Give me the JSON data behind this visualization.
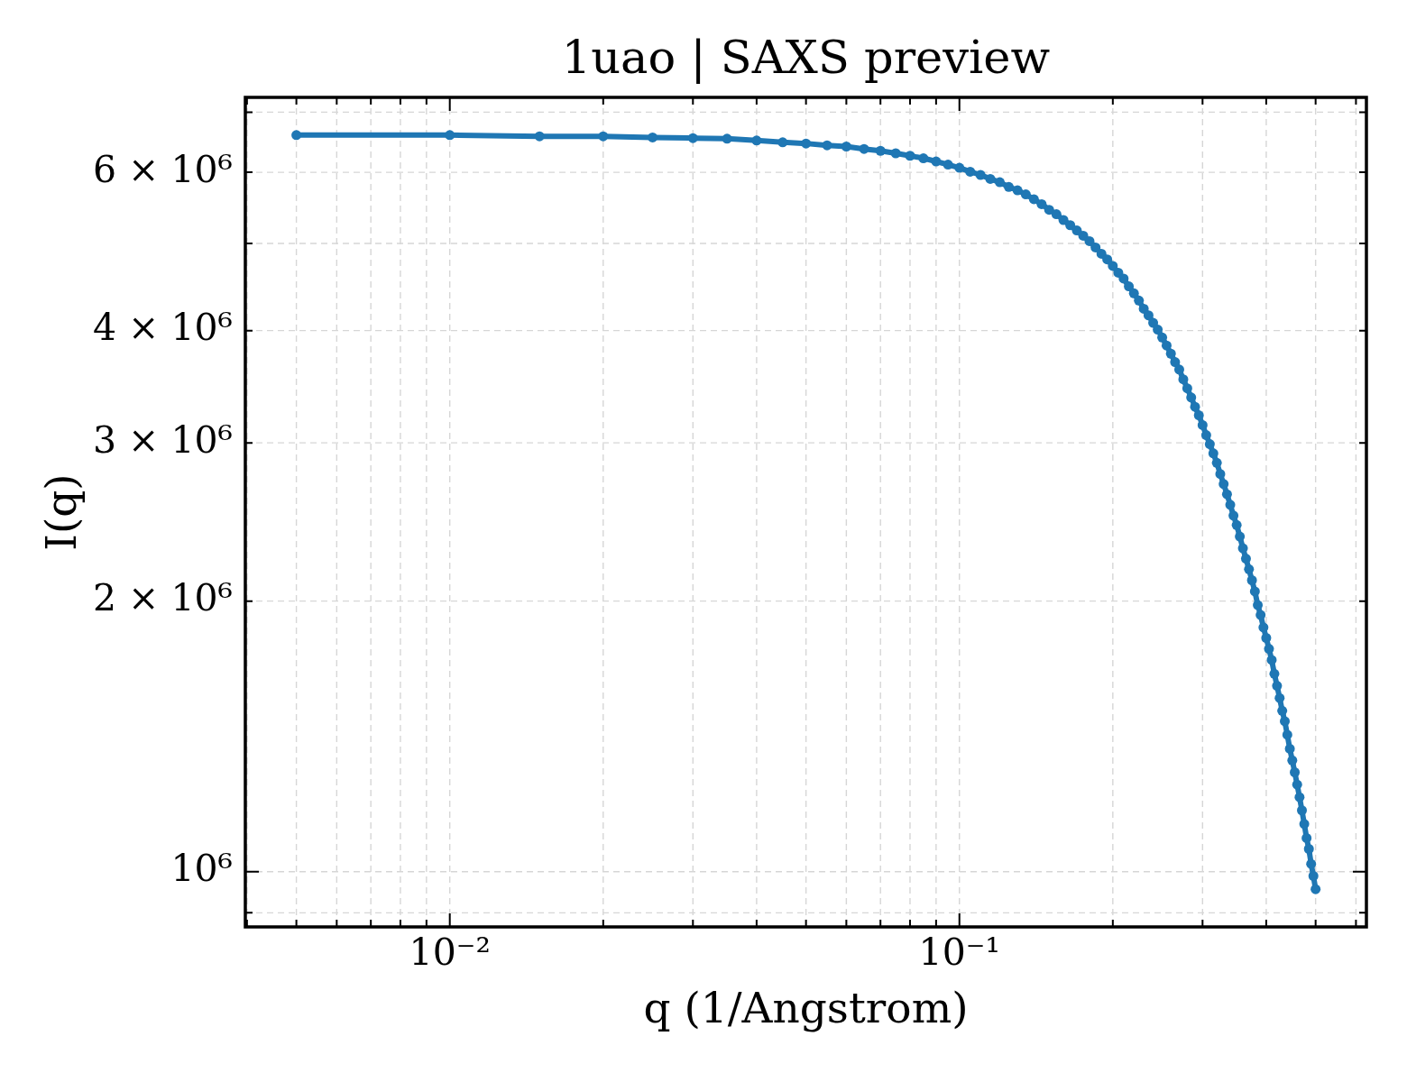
{
  "chart_data": {
    "type": "line",
    "title": "1uao | SAXS preview",
    "xlabel": "q (1/Angstrom)",
    "ylabel": "I(q)",
    "x": [
      0.005,
      0.01,
      0.015,
      0.02,
      0.025,
      0.03,
      0.035,
      0.04,
      0.045,
      0.05,
      0.055,
      0.06,
      0.065,
      0.07,
      0.075,
      0.08,
      0.085,
      0.09,
      0.095,
      0.1,
      0.105,
      0.11,
      0.115,
      0.12,
      0.125,
      0.13,
      0.135,
      0.14,
      0.145,
      0.15,
      0.155,
      0.16,
      0.165,
      0.17,
      0.175,
      0.18,
      0.185,
      0.19,
      0.195,
      0.2,
      0.205,
      0.21,
      0.215,
      0.22,
      0.225,
      0.23,
      0.235,
      0.24,
      0.245,
      0.25,
      0.255,
      0.26,
      0.265,
      0.27,
      0.275,
      0.28,
      0.285,
      0.29,
      0.295,
      0.3,
      0.305,
      0.31,
      0.315,
      0.32,
      0.325,
      0.33,
      0.335,
      0.34,
      0.345,
      0.35,
      0.355,
      0.36,
      0.365,
      0.37,
      0.375,
      0.38,
      0.385,
      0.39,
      0.395,
      0.4,
      0.405,
      0.41,
      0.415,
      0.42,
      0.425,
      0.43,
      0.435,
      0.44,
      0.445,
      0.45,
      0.455,
      0.46,
      0.465,
      0.47,
      0.475,
      0.48,
      0.485,
      0.49,
      0.495,
      0.5
    ],
    "series": [
      {
        "color": "#1f77b4",
        "values": [
          6600000,
          6600000,
          6580000,
          6580000,
          6560000,
          6550000,
          6540000,
          6510000,
          6480000,
          6460000,
          6430000,
          6410000,
          6370000,
          6340000,
          6300000,
          6260000,
          6220000,
          6170000,
          6120000,
          6070000,
          6010000,
          5960000,
          5900000,
          5850000,
          5780000,
          5730000,
          5670000,
          5600000,
          5530000,
          5450000,
          5390000,
          5310000,
          5240000,
          5170000,
          5100000,
          5030000,
          4950000,
          4870000,
          4800000,
          4720000,
          4640000,
          4570000,
          4480000,
          4400000,
          4320000,
          4230000,
          4160000,
          4080000,
          4010000,
          3930000,
          3850000,
          3770000,
          3690000,
          3620000,
          3530000,
          3450000,
          3370000,
          3290000,
          3220000,
          3140000,
          3060000,
          2990000,
          2920000,
          2850000,
          2770000,
          2700000,
          2630000,
          2560000,
          2490000,
          2430000,
          2360000,
          2290000,
          2230000,
          2170000,
          2110000,
          2050000,
          1980000,
          1930000,
          1870000,
          1820000,
          1770000,
          1720000,
          1660000,
          1610000,
          1560000,
          1510000,
          1470000,
          1420000,
          1370000,
          1330000,
          1290000,
          1250000,
          1210000,
          1170000,
          1130000,
          1090000,
          1060000,
          1020000,
          989000,
          956000
        ]
      }
    ],
    "log": "xy",
    "xlim": [
      0.00397,
      0.629
    ],
    "ylim": [
      868000,
      7270000
    ],
    "xticks": [
      {
        "value": 0.004,
        "label": null
      },
      {
        "value": 0.005,
        "label": null
      },
      {
        "value": 0.006,
        "label": null
      },
      {
        "value": 0.007,
        "label": null
      },
      {
        "value": 0.008,
        "label": null
      },
      {
        "value": 0.009,
        "label": null
      },
      {
        "value": 0.01,
        "label": "10⁻²"
      },
      {
        "value": 0.02,
        "label": null
      },
      {
        "value": 0.03,
        "label": null
      },
      {
        "value": 0.04,
        "label": null
      },
      {
        "value": 0.05,
        "label": null
      },
      {
        "value": 0.06,
        "label": null
      },
      {
        "value": 0.07,
        "label": null
      },
      {
        "value": 0.08,
        "label": null
      },
      {
        "value": 0.09,
        "label": null
      },
      {
        "value": 0.1,
        "label": "10⁻¹"
      },
      {
        "value": 0.2,
        "label": null
      },
      {
        "value": 0.3,
        "label": null
      },
      {
        "value": 0.4,
        "label": null
      },
      {
        "value": 0.5,
        "label": null
      },
      {
        "value": 0.6,
        "label": null
      }
    ],
    "yticks": [
      {
        "value": 900000,
        "label": null
      },
      {
        "value": 1000000,
        "label": "10⁶"
      },
      {
        "value": 2000000,
        "label": "2 × 10⁶"
      },
      {
        "value": 3000000,
        "label": "3 × 10⁶"
      },
      {
        "value": 4000000,
        "label": "4 × 10⁶"
      },
      {
        "value": 5000000,
        "label": null
      },
      {
        "value": 6000000,
        "label": "6 × 10⁶"
      },
      {
        "value": 7000000,
        "label": null
      }
    ],
    "grid": true,
    "marker": "circle",
    "line_style": "solid"
  }
}
